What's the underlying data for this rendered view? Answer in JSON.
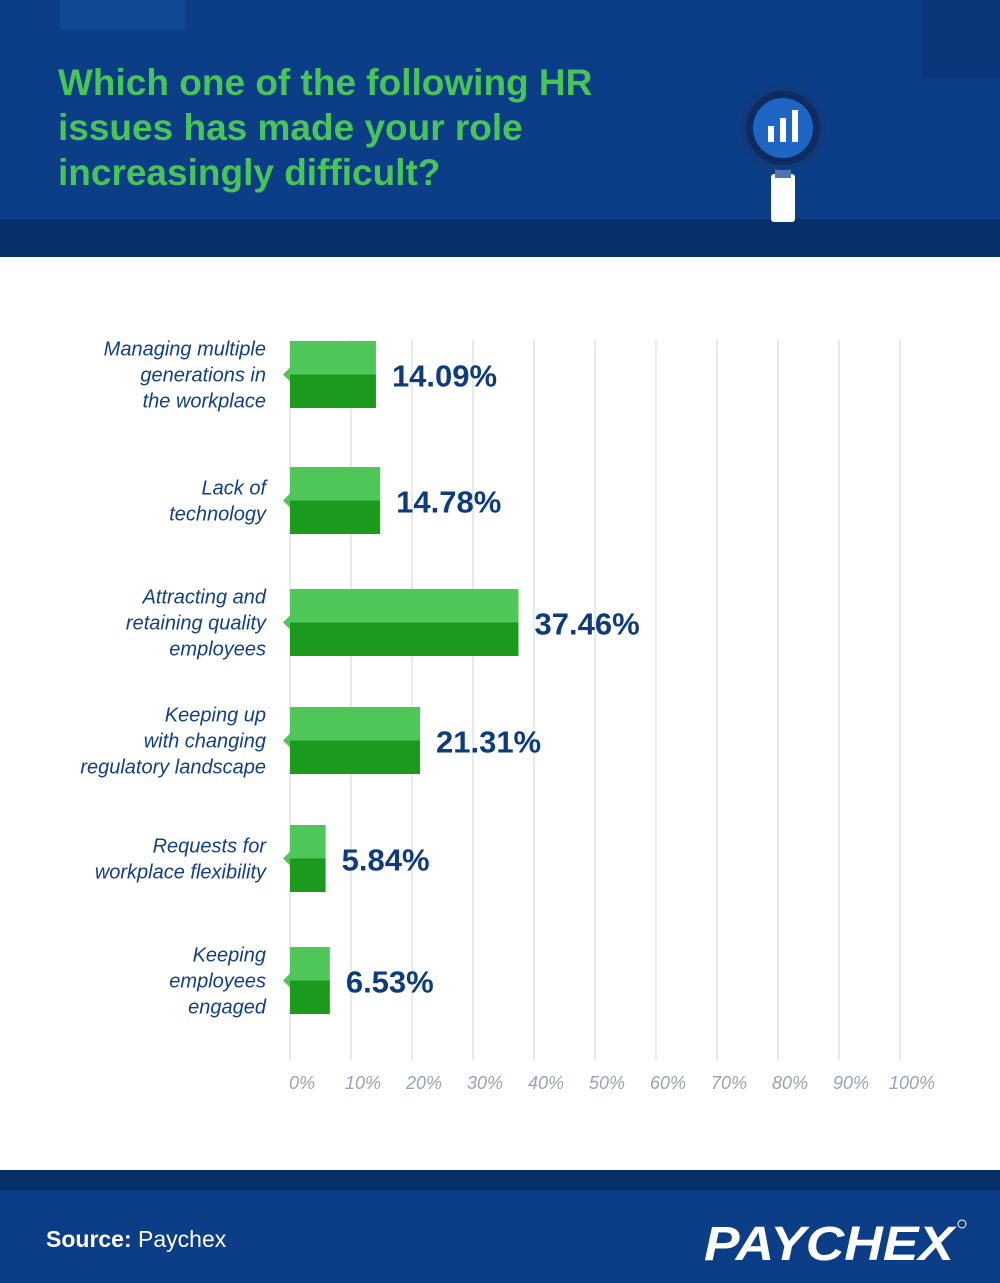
{
  "title": "Which one of the following HR issues has made your role increasingly difficult?",
  "footer": {
    "source_label": "Source:",
    "source_value": "Paychex",
    "logo_text": "PAYCHEX"
  },
  "colors": {
    "header_bg": "#0b3e86",
    "title_green": "#49c558",
    "bar_top": "#4ec758",
    "bar_bottom": "#1b9a1d",
    "value_text": "#0d3b7e",
    "label_text": "#123f86"
  },
  "chart_data": {
    "type": "bar",
    "orientation": "horizontal",
    "categories": [
      [
        "Managing multiple",
        "generations in",
        "the workplace"
      ],
      [
        "Lack of",
        "technology"
      ],
      [
        "Attracting and",
        "retaining quality",
        "employees"
      ],
      [
        "Keeping up",
        "with changing",
        "regulatory landscape"
      ],
      [
        "Requests for",
        "workplace flexibility"
      ],
      [
        "Keeping",
        "employees",
        "engaged"
      ]
    ],
    "values": [
      14.09,
      14.78,
      37.46,
      21.31,
      5.84,
      6.53
    ],
    "value_labels": [
      "14.09%",
      "14.78%",
      "37.46%",
      "21.31%",
      "5.84%",
      "6.53%"
    ],
    "x_ticks": [
      "0%",
      "10%",
      "20%",
      "30%",
      "40%",
      "50%",
      "60%",
      "70%",
      "80%",
      "90%",
      "100%"
    ],
    "xlim": [
      0,
      100
    ],
    "grid": true,
    "legend": "none"
  }
}
